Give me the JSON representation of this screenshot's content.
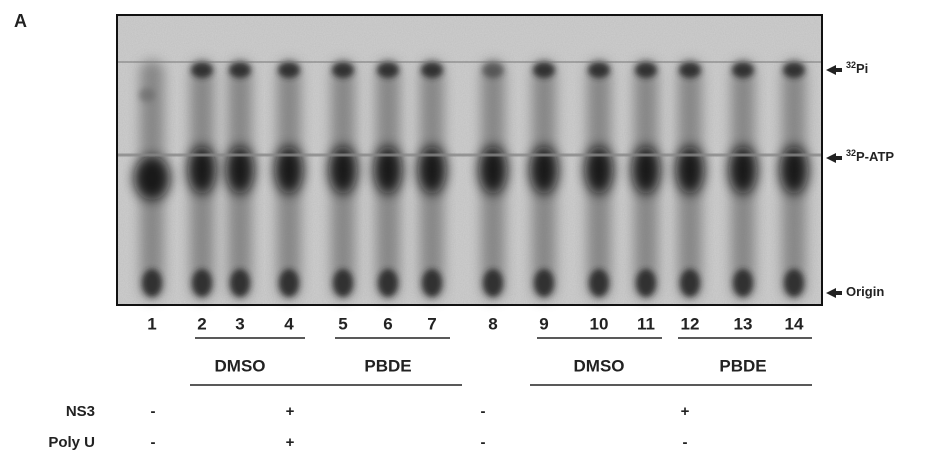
{
  "panel_label": "A",
  "markers": [
    {
      "sup": "32",
      "text": "Pi"
    },
    {
      "sup": "32",
      "text": "P-ATP"
    },
    {
      "sup": null,
      "text": "Origin"
    }
  ],
  "lanes": [
    "1",
    "2",
    "3",
    "4",
    "5",
    "6",
    "7",
    "8",
    "9",
    "10",
    "11",
    "12",
    "13",
    "14"
  ],
  "groups": [
    "DMSO",
    "PBDE",
    "DMSO",
    "PBDE"
  ],
  "rows": [
    {
      "label": "NS3",
      "signs": [
        "-",
        "+",
        "-",
        "+"
      ]
    },
    {
      "label": "Poly U",
      "signs": [
        "-",
        "+",
        "-",
        "-"
      ]
    }
  ]
}
